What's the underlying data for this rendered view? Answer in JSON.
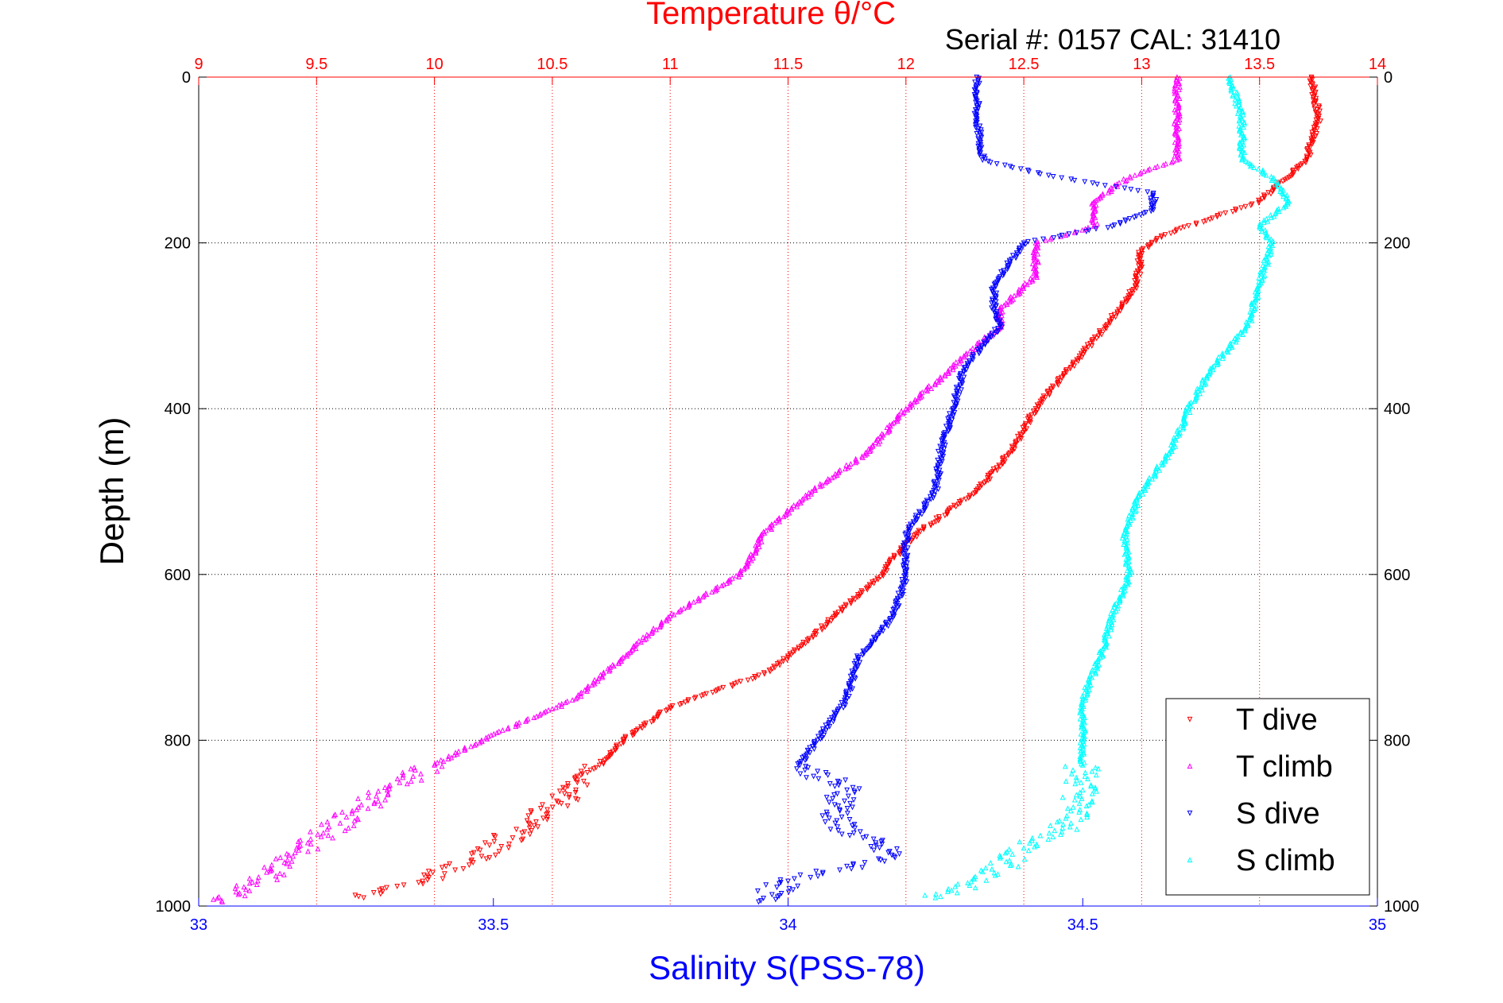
{
  "chart_data": {
    "type": "scatter",
    "title": "Temperature θ/°C",
    "subtitle": "Serial #: 0157  CAL: 31410",
    "top_axis": {
      "label": "Temperature θ/°C",
      "range": [
        9,
        14
      ],
      "ticks": [
        9,
        9.5,
        10,
        10.5,
        11,
        11.5,
        12,
        12.5,
        13,
        13.5,
        14
      ],
      "tick_labels": [
        "9",
        "9.5",
        "10",
        "10.5",
        "11",
        "11.5",
        "12",
        "12.5",
        "13",
        "13.5",
        "14"
      ]
    },
    "bottom_axis": {
      "label": "Salinity S(PSS-78)",
      "range": [
        33,
        35
      ],
      "ticks": [
        33,
        33.5,
        34,
        34.5,
        35
      ],
      "tick_labels": [
        "33",
        "33.5",
        "34",
        "34.5",
        "35"
      ]
    },
    "y_axis": {
      "label": "Depth (m)",
      "range": [
        0,
        1000
      ],
      "reversed": true,
      "ticks": [
        0,
        200,
        400,
        600,
        800,
        1000
      ],
      "tick_labels": [
        "0",
        "200",
        "400",
        "600",
        "800",
        "1000"
      ]
    },
    "grid": true,
    "legend_position": "bottom-right",
    "colors": {
      "temperature_axis": "#ff0000",
      "salinity_axis": "#0000ff",
      "t_dive": "#ff0000",
      "t_climb": "#ff00ff",
      "s_dive": "#0000ff",
      "s_climb": "#00ffff"
    },
    "series": [
      {
        "name": "T dive",
        "axis": "temperature",
        "marker": "triangle-down",
        "color": "#ff0000",
        "depth": [
          0,
          50,
          100,
          130,
          150,
          170,
          190,
          210,
          250,
          300,
          350,
          400,
          450,
          500,
          550,
          580,
          600,
          650,
          700,
          720,
          760,
          800,
          830,
          860,
          900,
          940,
          970,
          990
        ],
        "values": [
          13.72,
          13.75,
          13.7,
          13.58,
          13.5,
          13.3,
          13.1,
          13.0,
          12.98,
          12.85,
          12.7,
          12.55,
          12.45,
          12.3,
          12.05,
          11.95,
          11.9,
          11.7,
          11.5,
          11.4,
          11.0,
          10.8,
          10.7,
          10.6,
          10.4,
          10.2,
          9.95,
          9.7
        ]
      },
      {
        "name": "T climb",
        "axis": "temperature",
        "marker": "triangle-up",
        "color": "#ff00ff",
        "depth": [
          0,
          50,
          100,
          120,
          150,
          180,
          200,
          240,
          280,
          300,
          350,
          400,
          450,
          500,
          550,
          600,
          650,
          700,
          750,
          800,
          830,
          860,
          900,
          940,
          980,
          995
        ],
        "values": [
          13.15,
          13.15,
          13.15,
          12.95,
          12.8,
          12.8,
          12.55,
          12.55,
          12.4,
          12.4,
          12.2,
          12.0,
          11.85,
          11.6,
          11.4,
          11.3,
          11.0,
          10.8,
          10.6,
          10.2,
          10.0,
          9.8,
          9.6,
          9.4,
          9.2,
          9.1
        ]
      },
      {
        "name": "S dive",
        "axis": "salinity",
        "marker": "triangle-down",
        "color": "#0000ff",
        "depth": [
          0,
          50,
          100,
          120,
          140,
          160,
          180,
          200,
          250,
          280,
          300,
          350,
          400,
          450,
          500,
          550,
          580,
          600,
          650,
          700,
          750,
          800,
          830,
          860,
          900,
          940,
          970,
          995
        ],
        "values": [
          34.32,
          34.32,
          34.33,
          34.45,
          34.62,
          34.62,
          34.55,
          34.4,
          34.35,
          34.35,
          34.36,
          34.3,
          34.28,
          34.26,
          34.25,
          34.2,
          34.2,
          34.2,
          34.18,
          34.12,
          34.1,
          34.05,
          34.02,
          34.1,
          34.08,
          34.18,
          34.0,
          33.95
        ]
      },
      {
        "name": "S climb",
        "axis": "salinity",
        "marker": "triangle-up",
        "color": "#00ffff",
        "depth": [
          0,
          50,
          100,
          120,
          150,
          180,
          200,
          250,
          300,
          350,
          400,
          450,
          500,
          550,
          600,
          650,
          700,
          750,
          800,
          830,
          860,
          900,
          930,
          960,
          990
        ],
        "values": [
          34.75,
          34.77,
          34.77,
          34.82,
          34.85,
          34.8,
          34.82,
          34.8,
          34.78,
          34.72,
          34.68,
          34.65,
          34.6,
          34.57,
          34.58,
          34.55,
          34.53,
          34.5,
          34.5,
          34.5,
          34.5,
          34.48,
          34.4,
          34.35,
          34.25
        ]
      }
    ]
  }
}
